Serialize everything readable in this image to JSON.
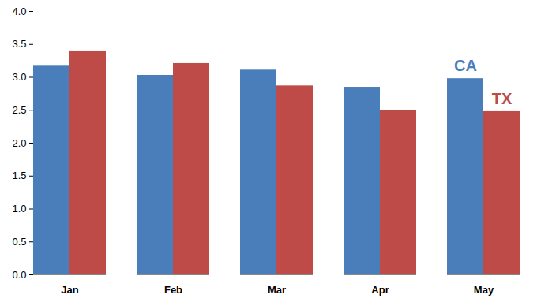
{
  "chart_data": {
    "type": "bar",
    "categories": [
      "Jan",
      "Feb",
      "Mar",
      "Apr",
      "May"
    ],
    "series": [
      {
        "name": "CA",
        "color": "#4a7ebb",
        "values": [
          3.17,
          3.03,
          3.11,
          2.85,
          2.98
        ]
      },
      {
        "name": "TX",
        "color": "#be4b48",
        "values": [
          3.39,
          3.21,
          2.87,
          2.5,
          2.48
        ]
      }
    ],
    "ylim": [
      0,
      4
    ],
    "yticks": [
      {
        "value": 0,
        "label": "0.0"
      },
      0.5,
      {
        "value": 1,
        "label": "1.0"
      },
      1.5,
      {
        "value": 2,
        "label": "2.0"
      },
      2.5,
      {
        "value": 3,
        "label": "3.0"
      },
      3.5,
      {
        "value": 4,
        "label": "4.0"
      }
    ],
    "grid": false
  }
}
